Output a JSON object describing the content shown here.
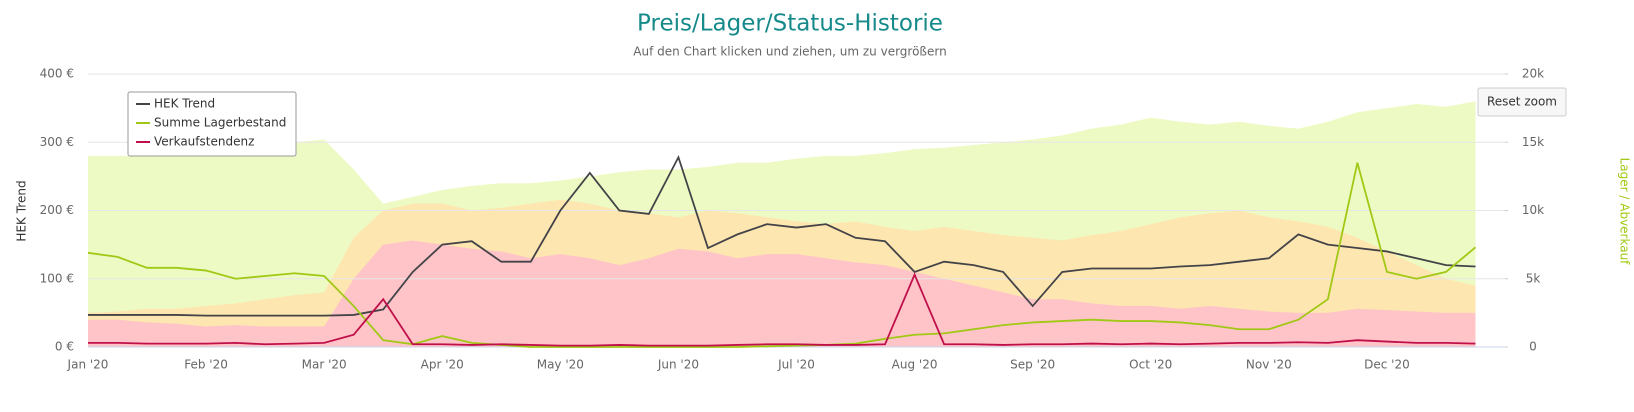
{
  "chart_data": {
    "type": "line",
    "title": "Preis/Lager/Status-Historie",
    "subtitle": "Auf den Chart klicken und ziehen, um zu vergrößern",
    "button": "Reset zoom",
    "y_label": "HEK Trend",
    "y2_label": "Lager / Abverkauf",
    "legend": "top-left",
    "grid": true,
    "categories": [
      "Jan '20",
      null,
      null,
      null,
      "Feb '20",
      null,
      null,
      null,
      "Mar '20",
      null,
      null,
      null,
      "Apr '20",
      null,
      null,
      null,
      "May '20",
      null,
      null,
      null,
      "Jun '20",
      null,
      null,
      null,
      "Jul '20",
      null,
      null,
      null,
      "Aug '20",
      null,
      null,
      null,
      "Sep '20",
      null,
      null,
      null,
      "Oct '20",
      null,
      null,
      null,
      "Nov '20",
      null,
      null,
      null,
      "Dec '20",
      null,
      null,
      null
    ],
    "ylim": [
      0,
      400
    ],
    "yticks": [
      {
        "value": 0,
        "label": "0 €"
      },
      {
        "value": 100,
        "label": "100 €"
      },
      {
        "value": 200,
        "label": "200 €"
      },
      {
        "value": 300,
        "label": "300 €"
      },
      {
        "value": 400,
        "label": "400 €"
      }
    ],
    "y2lim": [
      0,
      20000
    ],
    "y2ticks": [
      0,
      {
        "value": 5000,
        "label": "5k"
      },
      {
        "value": 10000,
        "label": "10k"
      },
      {
        "value": 15000,
        "label": "15k"
      },
      {
        "value": 20000,
        "label": "20k"
      }
    ],
    "areas": [
      {
        "color": "#eefac4",
        "axis": "y2",
        "values": [
          14000,
          14000,
          14000,
          14000,
          14000,
          14200,
          14500,
          15000,
          15200,
          13000,
          10500,
          11000,
          11500,
          11800,
          12000,
          12000,
          12200,
          12500,
          12800,
          13000,
          13000,
          13200,
          13500,
          13500,
          13800,
          14000,
          14000,
          14200,
          14500,
          14600,
          14800,
          15000,
          15200,
          15500,
          16000,
          16300,
          16800,
          16500,
          16300,
          16500,
          16200,
          16000,
          16500,
          17200,
          17500,
          17800,
          17600,
          18000
        ]
      },
      {
        "color": "#fde6b0",
        "axis": "y2",
        "values": [
          2500,
          2600,
          2800,
          2800,
          3000,
          3200,
          3500,
          3800,
          4000,
          8000,
          10000,
          10500,
          10500,
          10000,
          10200,
          10500,
          10800,
          10500,
          10000,
          9800,
          9500,
          10000,
          9800,
          9500,
          9200,
          9000,
          9200,
          8800,
          8500,
          8800,
          8500,
          8200,
          8000,
          7800,
          8200,
          8500,
          9000,
          9500,
          9800,
          10000,
          9500,
          9200,
          8800,
          8000,
          7000,
          6000,
          5000,
          4500
        ]
      },
      {
        "color": "#ffc4c8",
        "axis": "y2",
        "values": [
          2000,
          2000,
          1800,
          1700,
          1500,
          1600,
          1500,
          1500,
          1500,
          5000,
          7500,
          7800,
          7500,
          7200,
          7000,
          6500,
          6800,
          6500,
          6000,
          6500,
          7200,
          7000,
          6500,
          6800,
          6800,
          6500,
          6200,
          6000,
          5500,
          5000,
          4500,
          4000,
          3500,
          3500,
          3200,
          3000,
          3000,
          2800,
          3000,
          2800,
          2600,
          2500,
          2500,
          2800,
          2700,
          2600,
          2500,
          2500
        ]
      }
    ],
    "series": [
      {
        "name": "HEK Trend",
        "color": "#434348",
        "values": [
          47,
          47,
          47,
          47,
          46,
          46,
          46,
          46,
          46,
          47,
          55,
          110,
          150,
          155,
          125,
          125,
          200,
          255,
          200,
          195,
          278,
          145,
          165,
          180,
          175,
          180,
          160,
          155,
          110,
          125,
          120,
          110,
          60,
          110,
          115,
          115,
          115,
          118,
          120,
          125,
          130,
          165,
          150,
          145,
          140,
          130,
          120,
          118
        ]
      },
      {
        "name": "Summe Lagerbestand",
        "color": "#a0c814",
        "axis": "y2",
        "values": [
          6900,
          6600,
          5800,
          5800,
          5600,
          5000,
          5200,
          5400,
          5200,
          3000,
          500,
          200,
          800,
          300,
          150,
          0,
          0,
          0,
          0,
          0,
          0,
          0,
          0,
          50,
          100,
          150,
          250,
          600,
          900,
          1000,
          1300,
          1600,
          1800,
          1900,
          2000,
          1900,
          1900,
          1800,
          1600,
          1300,
          1300,
          2000,
          3500,
          13500,
          5500,
          5000,
          5500,
          7300
        ]
      },
      {
        "name": "Verkaufstendenz",
        "color": "#c0104a",
        "axis": "y2",
        "values": [
          300,
          300,
          250,
          250,
          250,
          300,
          200,
          250,
          300,
          900,
          3500,
          200,
          200,
          150,
          200,
          150,
          100,
          100,
          150,
          100,
          100,
          100,
          150,
          200,
          200,
          150,
          150,
          200,
          5300,
          200,
          200,
          150,
          200,
          200,
          250,
          200,
          250,
          200,
          250,
          300,
          300,
          350,
          300,
          500,
          400,
          300,
          300,
          250
        ]
      }
    ]
  }
}
